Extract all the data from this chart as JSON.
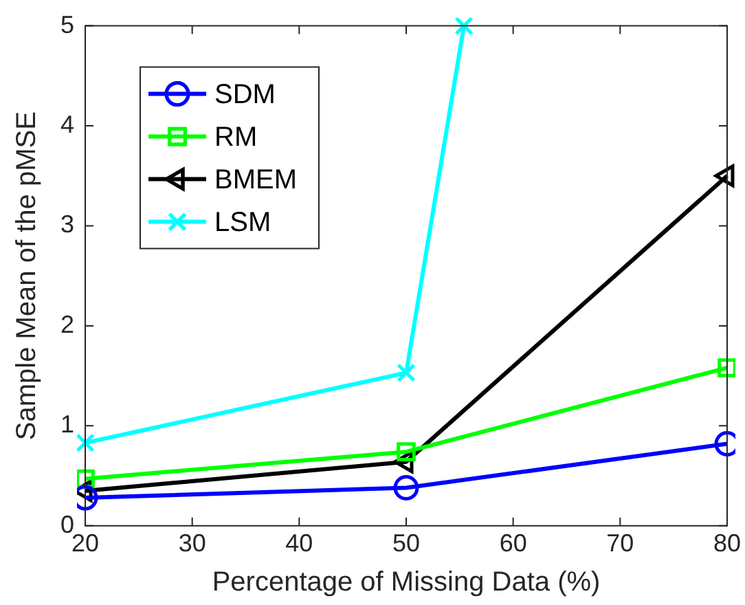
{
  "chart_data": {
    "type": "line",
    "xlabel": "Percentage of Missing Data (%)",
    "ylabel": "Sample Mean of the pMSE",
    "x": [
      20,
      50,
      80
    ],
    "series": [
      {
        "name": "SDM",
        "color": "#0000ff",
        "marker": "circle",
        "values": [
          0.28,
          0.38,
          0.82
        ]
      },
      {
        "name": "RM",
        "color": "#00ff00",
        "marker": "square",
        "values": [
          0.47,
          0.74,
          1.58
        ]
      },
      {
        "name": "BMEM",
        "color": "#000000",
        "marker": "triangle",
        "values": [
          0.35,
          0.64,
          3.5
        ]
      },
      {
        "name": "LSM",
        "color": "#00ffff",
        "marker": "cross",
        "x": [
          20,
          50,
          55.4
        ],
        "values": [
          0.83,
          1.53,
          5
        ]
      }
    ],
    "xlim": [
      20,
      80
    ],
    "xticks": [
      20,
      30,
      40,
      50,
      60,
      70,
      80
    ],
    "ylim": [
      0,
      5
    ],
    "yticks": [
      0,
      1,
      2,
      3,
      4,
      5
    ],
    "grid": false,
    "legend": "top left",
    "line_style": "solid"
  }
}
